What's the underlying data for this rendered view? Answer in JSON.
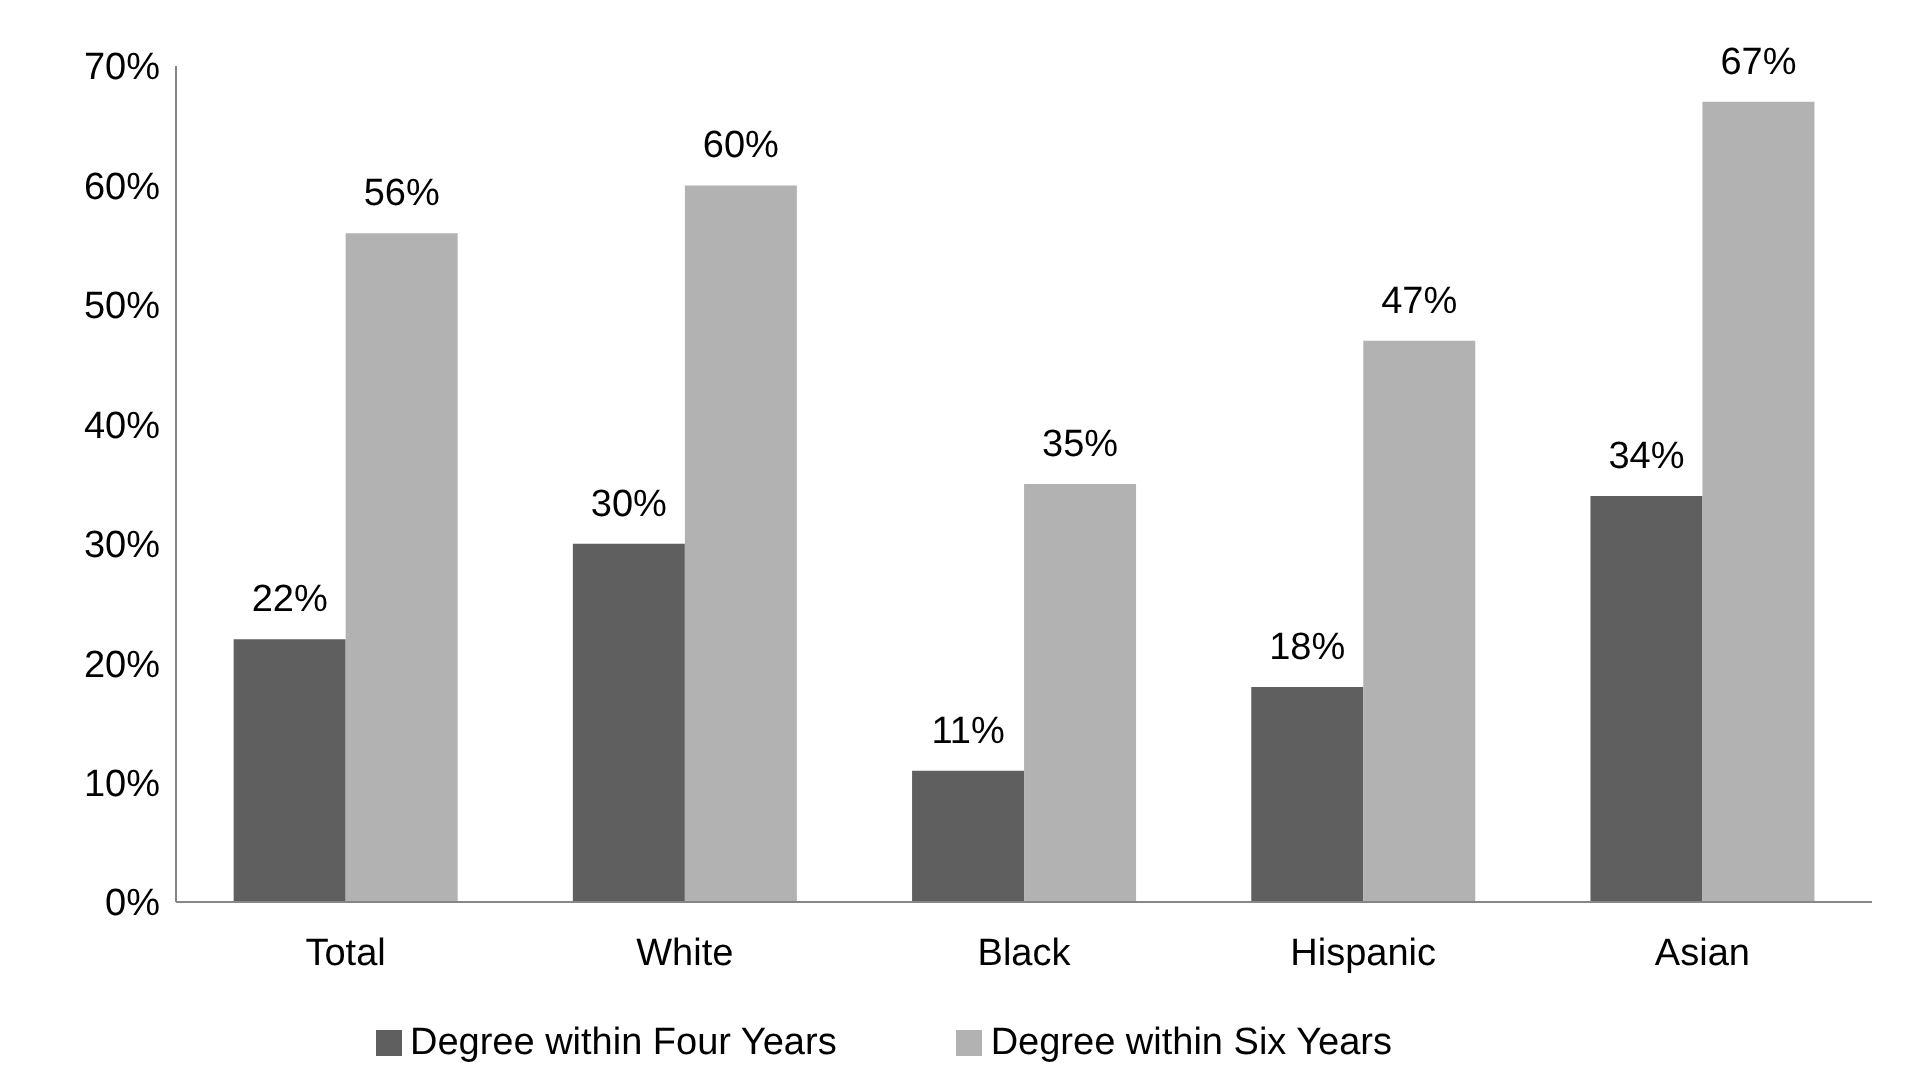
{
  "chart_data": {
    "type": "bar",
    "categories": [
      "Total",
      "White",
      "Black",
      "Hispanic",
      "Asian"
    ],
    "series": [
      {
        "name": "Degree within Four Years",
        "color": "#5f5f5f",
        "values": [
          22,
          30,
          11,
          18,
          34
        ],
        "value_labels": [
          "22%",
          "30%",
          "11%",
          "18%",
          "34%"
        ]
      },
      {
        "name": "Degree within Six Years",
        "color": "#b2b2b2",
        "values": [
          56,
          60,
          35,
          47,
          67
        ],
        "value_labels": [
          "56%",
          "60%",
          "35%",
          "47%",
          "67%"
        ]
      }
    ],
    "ylim": [
      0,
      70
    ],
    "yticks": [
      {
        "value": 0,
        "label": "0%"
      },
      {
        "value": 10,
        "label": "10%"
      },
      {
        "value": 20,
        "label": "20%"
      },
      {
        "value": 30,
        "label": "30%"
      },
      {
        "value": 40,
        "label": "40%"
      },
      {
        "value": 50,
        "label": "50%"
      },
      {
        "value": 60,
        "label": "60%"
      },
      {
        "value": 70,
        "label": "70%"
      }
    ],
    "grid": false,
    "legend": "bottom"
  }
}
